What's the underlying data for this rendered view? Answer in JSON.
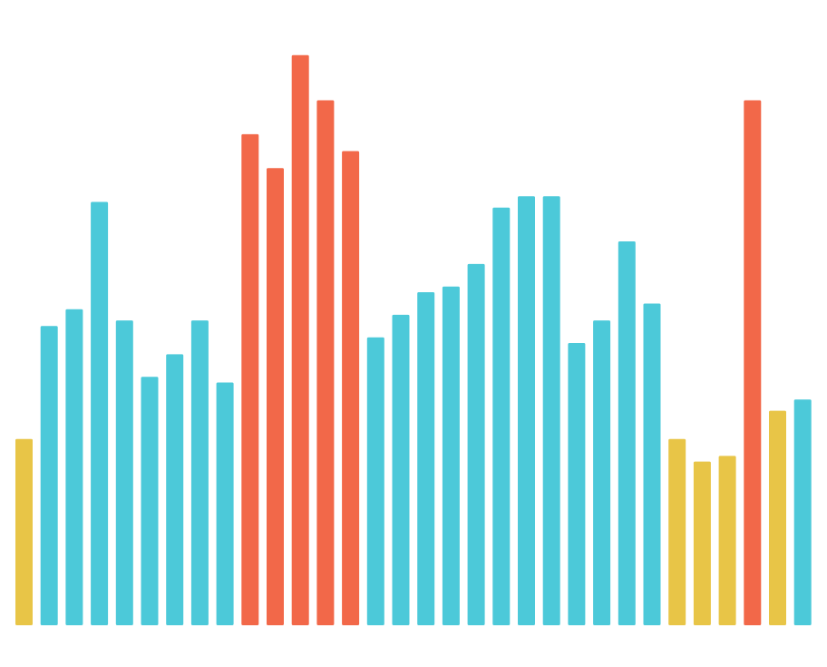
{
  "chart_data": {
    "type": "bar",
    "title": "",
    "xlabel": "",
    "ylabel": "",
    "grid": false,
    "legend": "none",
    "ylim": [
      0,
      100
    ],
    "colors": {
      "yellow": "#E8C547",
      "teal": "#4CC9D9",
      "red": "#F26849"
    },
    "values": [
      33,
      53,
      56,
      75,
      54,
      44,
      48,
      54,
      43,
      87,
      81,
      101,
      93,
      84,
      51,
      55,
      59,
      60,
      64,
      74,
      76,
      76,
      50,
      54,
      68,
      57,
      33,
      29,
      30,
      93,
      38,
      40
    ],
    "colorKeys": [
      "yellow",
      "teal",
      "teal",
      "teal",
      "teal",
      "teal",
      "teal",
      "teal",
      "teal",
      "red",
      "red",
      "red",
      "red",
      "red",
      "teal",
      "teal",
      "teal",
      "teal",
      "teal",
      "teal",
      "teal",
      "teal",
      "teal",
      "teal",
      "teal",
      "teal",
      "yellow",
      "yellow",
      "yellow",
      "red",
      "yellow",
      "teal"
    ]
  }
}
